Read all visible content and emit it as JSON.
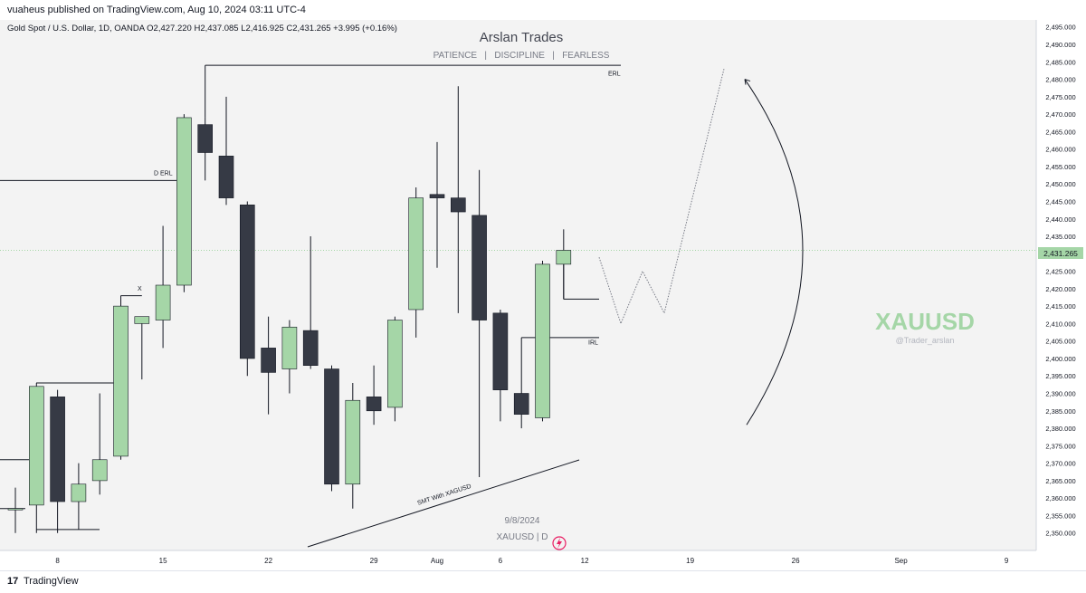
{
  "header": {
    "published_by": "vuaheus published on TradingView.com, Aug 10, 2024 03:11 UTC-4"
  },
  "footer": {
    "brand": "TradingView",
    "logo_glyph": "17"
  },
  "chart_data": {
    "type": "candlestick",
    "symbol_line": "Gold Spot / U.S. Dollar, 1D, OANDA  O2,427.220  H2,437.085  L2,416.925  C2,431.265  +3.995 (+0.16%)",
    "title": "Arslan Trades",
    "subtitle": "PATIENCE   |   DISCIPLINE   |   FEARLESS",
    "watermark": {
      "symbol": "XAUUSD",
      "handle": "@Trader_arslan"
    },
    "date_stamp": "9/8/2024",
    "symbol_tag": "XAUUSD | D",
    "colors": {
      "up": "#a5d6a7",
      "down": "#363a45",
      "bg": "#f3f3f3",
      "watermark": "#a5d6a7"
    },
    "ylim": [
      2345,
      2497
    ],
    "y_ticks": [
      "2,350.000",
      "2,355.000",
      "2,360.000",
      "2,365.000",
      "2,370.000",
      "2,375.000",
      "2,380.000",
      "2,385.000",
      "2,390.000",
      "2,395.000",
      "2,400.000",
      "2,405.000",
      "2,410.000",
      "2,415.000",
      "2,420.000",
      "2,425.000",
      "2,430.000",
      "2,435.000",
      "2,440.000",
      "2,445.000",
      "2,450.000",
      "2,455.000",
      "2,460.000",
      "2,465.000",
      "2,470.000",
      "2,475.000",
      "2,480.000",
      "2,485.000",
      "2,490.000",
      "2,495.000"
    ],
    "x_ticks": [
      {
        "label": "8",
        "i": 2
      },
      {
        "label": "15",
        "i": 7
      },
      {
        "label": "22",
        "i": 12
      },
      {
        "label": "29",
        "i": 17
      },
      {
        "label": "Aug",
        "i": 20
      },
      {
        "label": "6",
        "i": 23
      },
      {
        "label": "12",
        "i": 27
      },
      {
        "label": "19",
        "i": 32
      },
      {
        "label": "26",
        "i": 37
      },
      {
        "label": "Sep",
        "i": 42
      },
      {
        "label": "9",
        "i": 47
      }
    ],
    "current_price": "2,431.265",
    "candles": [
      {
        "i": 0,
        "o": 2357,
        "h": 2363,
        "l": 2350,
        "c": 2357
      },
      {
        "i": 1,
        "o": 2358,
        "h": 2393,
        "l": 2350,
        "c": 2392
      },
      {
        "i": 2,
        "o": 2389,
        "h": 2391,
        "l": 2350,
        "c": 2359
      },
      {
        "i": 3,
        "o": 2359,
        "h": 2370,
        "l": 2351,
        "c": 2364
      },
      {
        "i": 4,
        "o": 2365,
        "h": 2390,
        "l": 2361,
        "c": 2371
      },
      {
        "i": 5,
        "o": 2372,
        "h": 2418,
        "l": 2371,
        "c": 2415
      },
      {
        "i": 6,
        "o": 2410,
        "h": 2411,
        "l": 2394,
        "c": 2412
      },
      {
        "i": 7,
        "o": 2411,
        "h": 2438,
        "l": 2403,
        "c": 2421
      },
      {
        "i": 8,
        "o": 2421,
        "h": 2470,
        "l": 2419,
        "c": 2469
      },
      {
        "i": 9,
        "o": 2467,
        "h": 2469,
        "l": 2451,
        "c": 2459
      },
      {
        "i": 10,
        "o": 2458,
        "h": 2475,
        "l": 2444,
        "c": 2446
      },
      {
        "i": 11,
        "o": 2444,
        "h": 2445,
        "l": 2395,
        "c": 2400
      },
      {
        "i": 12,
        "o": 2403,
        "h": 2412,
        "l": 2384,
        "c": 2396
      },
      {
        "i": 13,
        "o": 2397,
        "h": 2411,
        "l": 2390,
        "c": 2409
      },
      {
        "i": 14,
        "o": 2408,
        "h": 2435,
        "l": 2397,
        "c": 2398
      },
      {
        "i": 15,
        "o": 2397,
        "h": 2398,
        "l": 2362,
        "c": 2364
      },
      {
        "i": 16,
        "o": 2364,
        "h": 2393,
        "l": 2357,
        "c": 2388
      },
      {
        "i": 17,
        "o": 2389,
        "h": 2398,
        "l": 2381,
        "c": 2385
      },
      {
        "i": 18,
        "o": 2386,
        "h": 2412,
        "l": 2382,
        "c": 2411
      },
      {
        "i": 19,
        "o": 2414,
        "h": 2449,
        "l": 2406,
        "c": 2446
      },
      {
        "i": 20,
        "o": 2447,
        "h": 2462,
        "l": 2426,
        "c": 2446
      },
      {
        "i": 21,
        "o": 2446,
        "h": 2478,
        "l": 2413,
        "c": 2442
      },
      {
        "i": 22,
        "o": 2441,
        "h": 2454,
        "l": 2366,
        "c": 2411
      },
      {
        "i": 23,
        "o": 2413,
        "h": 2414,
        "l": 2382,
        "c": 2391
      },
      {
        "i": 24,
        "o": 2390,
        "h": 2390,
        "l": 2380,
        "c": 2384
      },
      {
        "i": 25,
        "o": 2383,
        "h": 2428,
        "l": 2382,
        "c": 2427
      },
      {
        "i": 26,
        "o": 2427,
        "h": 2437,
        "l": 2417,
        "c": 2431
      }
    ],
    "annotations": {
      "erl_label": "ERL",
      "d_erl_label": "D ERL",
      "x_label": "X",
      "irl_label": "IRL",
      "smt_label": "SMT With XAGUSD"
    }
  }
}
